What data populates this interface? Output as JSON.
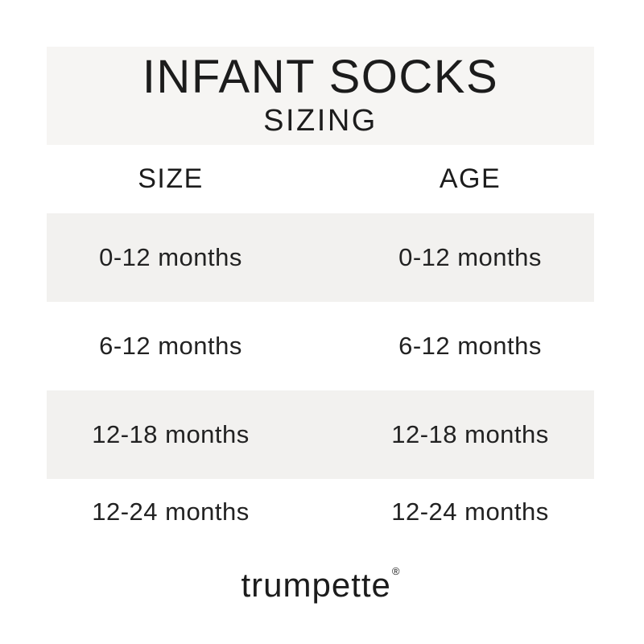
{
  "header": {
    "title": "INFANT SOCKS",
    "subtitle": "SIZING"
  },
  "table": {
    "columns": [
      "SIZE",
      "AGE"
    ],
    "rows": [
      {
        "size": "0-12 months",
        "age": "0-12 months"
      },
      {
        "size": "6-12 months",
        "age": "6-12 months"
      },
      {
        "size": "12-18 months",
        "age": "12-18 months"
      },
      {
        "size": "12-24 months",
        "age": "12-24 months"
      }
    ]
  },
  "footer": {
    "brand": "trumpette",
    "registered_mark": "®"
  },
  "colors": {
    "page_background": "#ffffff",
    "title_box_background": "#f6f5f3",
    "shaded_row_background": "#f2f1ef",
    "text": "#1c1c1c"
  },
  "chart_data": {
    "type": "table",
    "title": "INFANT SOCKS",
    "subtitle": "SIZING",
    "columns": [
      "SIZE",
      "AGE"
    ],
    "rows": [
      [
        "0-12 months",
        "0-12 months"
      ],
      [
        "6-12 months",
        "6-12 months"
      ],
      [
        "12-18 months",
        "12-18 months"
      ],
      [
        "12-24 months",
        "12-24 months"
      ]
    ],
    "brand": "trumpette",
    "layout": "two-column centered sizing table, alternating shaded bands, grid off"
  }
}
